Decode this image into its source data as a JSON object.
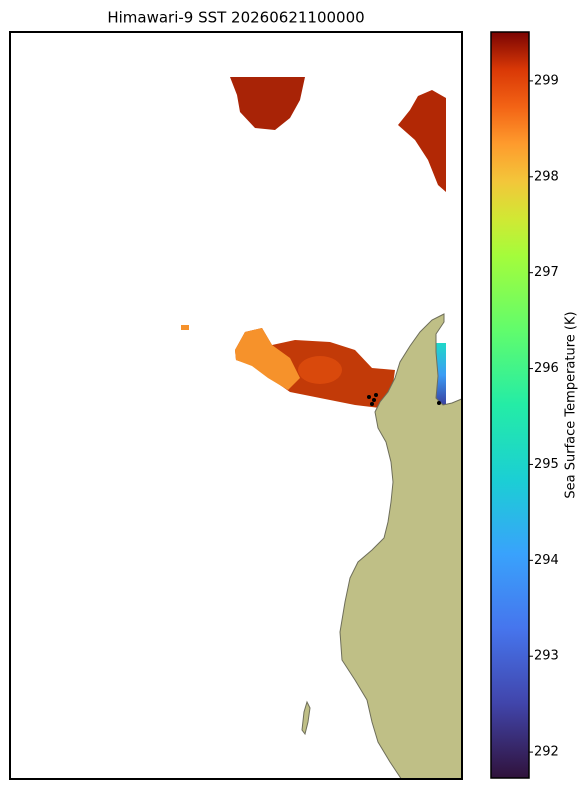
{
  "title": "Himawari-9 SST 20260621100000",
  "colorbar": {
    "label": "Sea Surface Temperature (K)",
    "lim": [
      291.73,
      299.51
    ],
    "ticks": [
      292,
      293,
      294,
      295,
      296,
      297,
      298,
      299
    ]
  }
}
